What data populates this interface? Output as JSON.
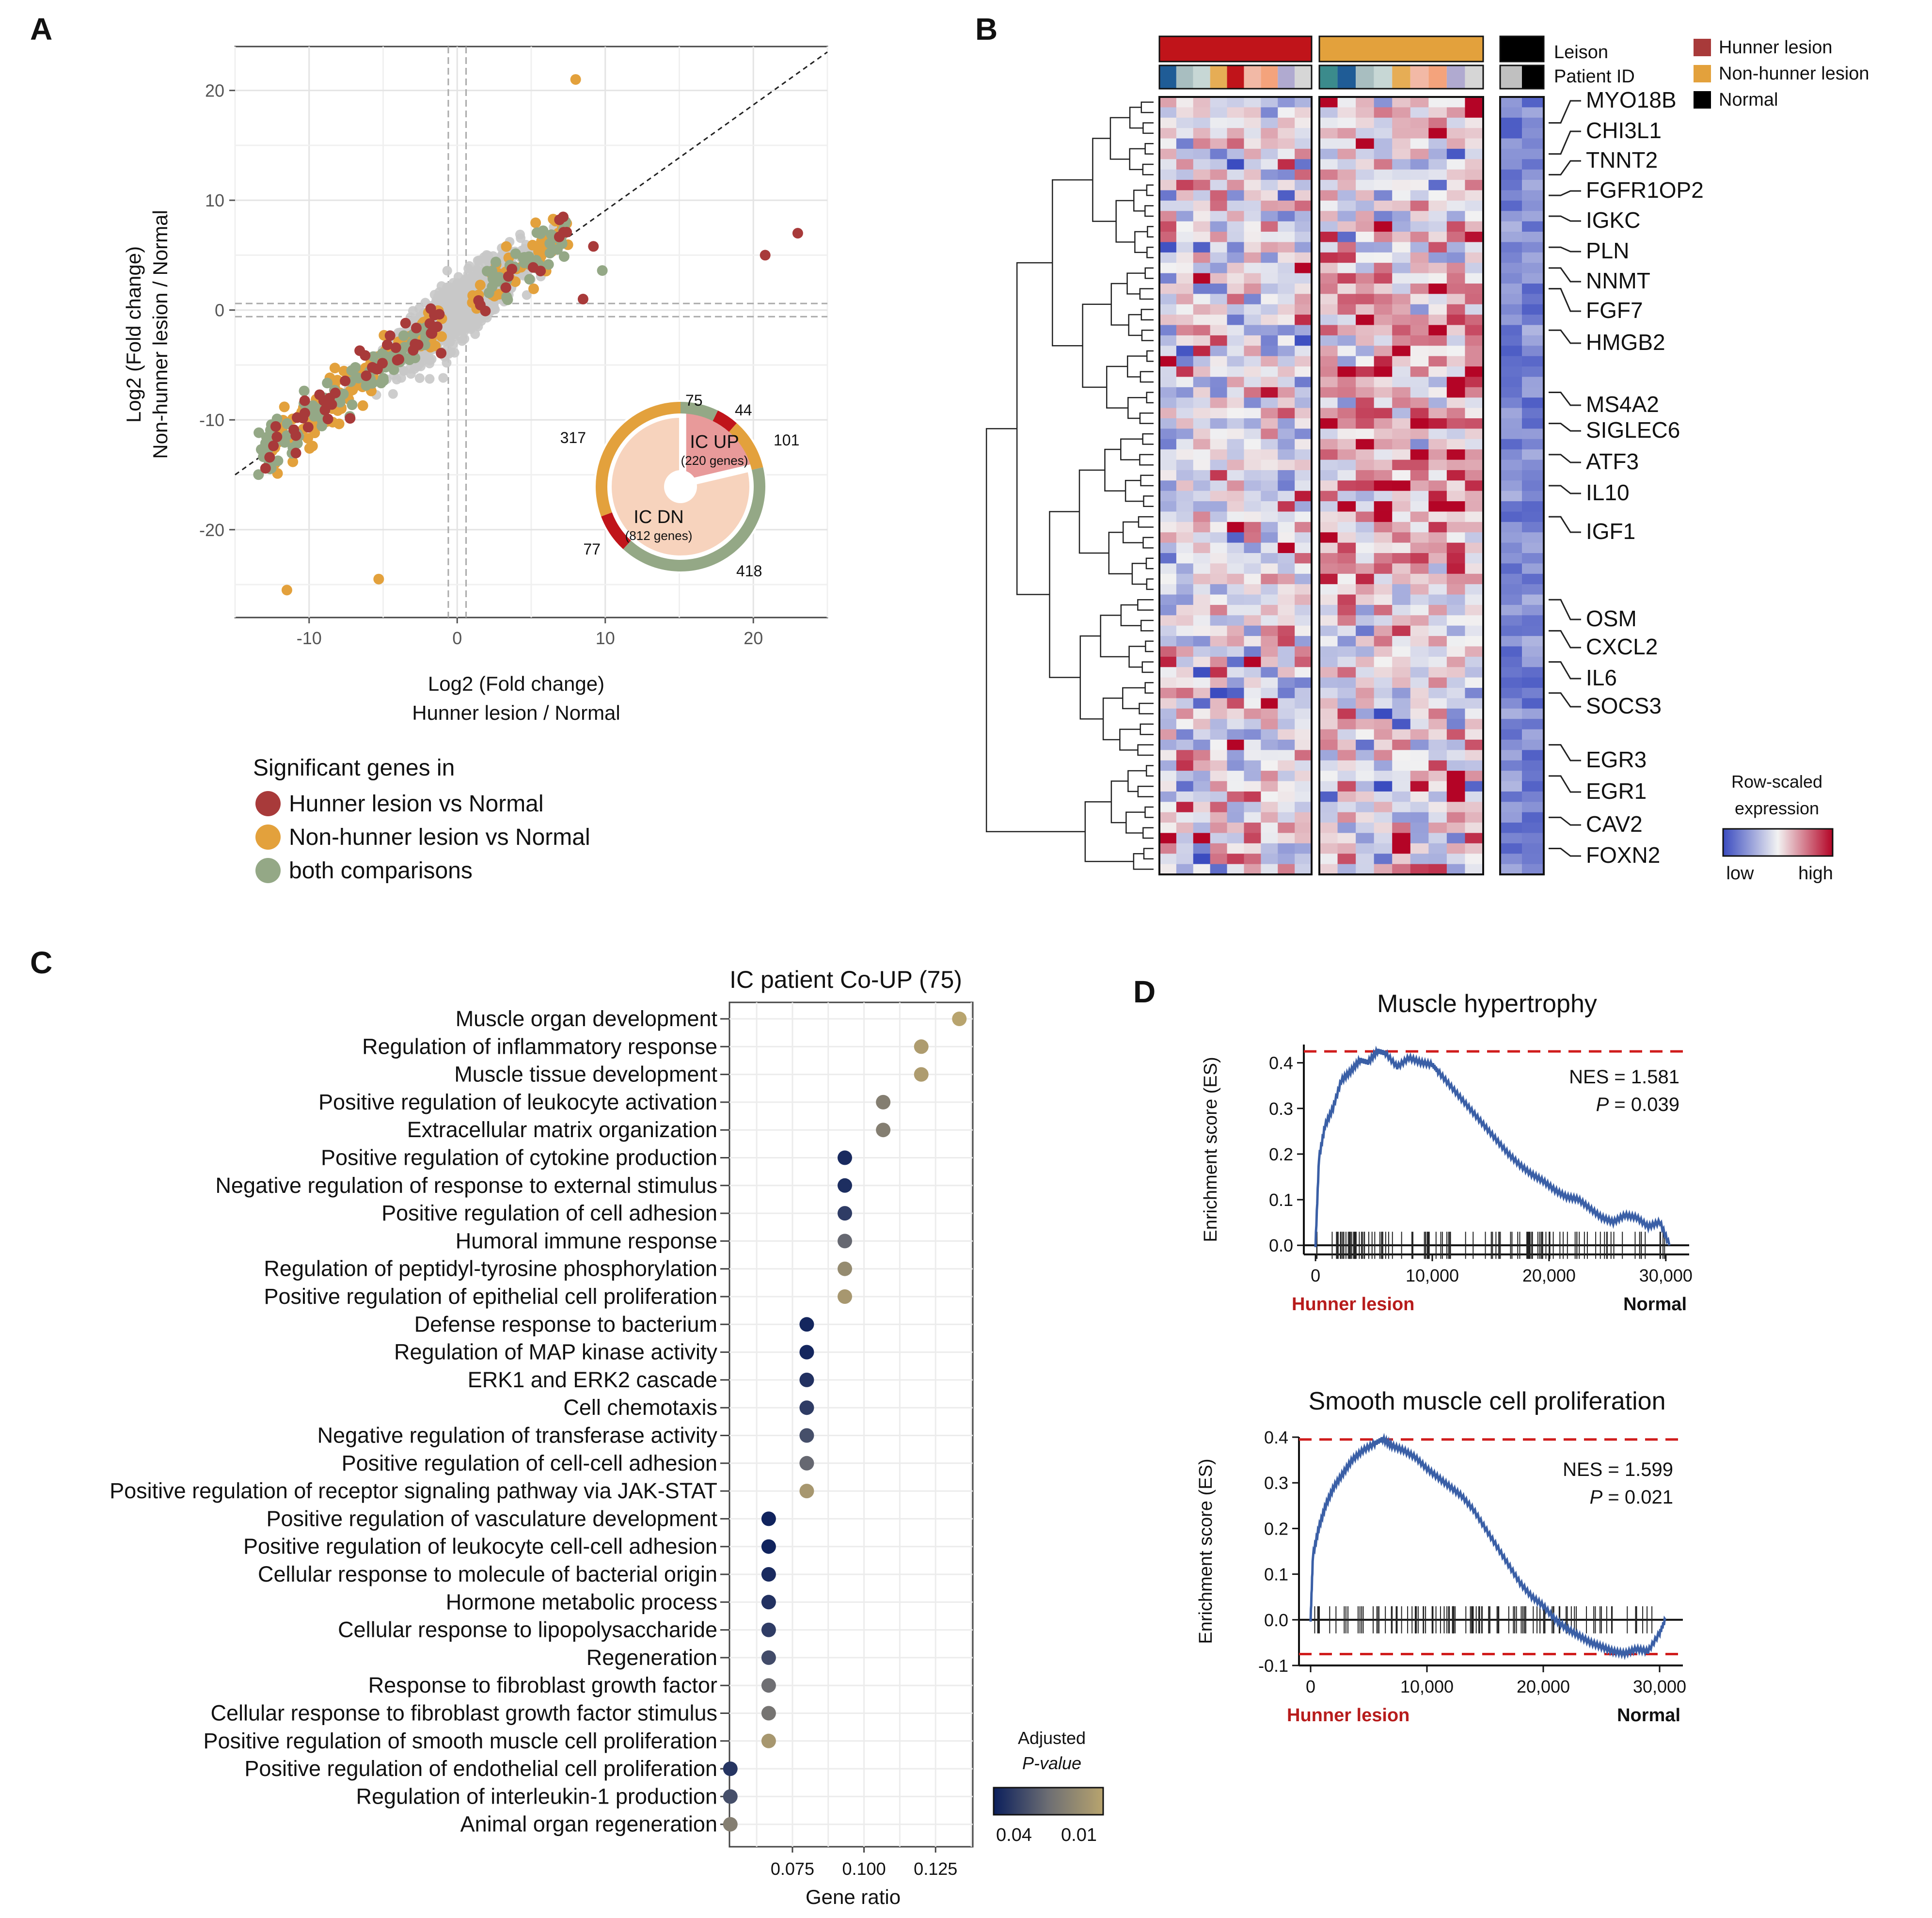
{
  "panels": {
    "a": "A",
    "b": "B",
    "c": "C",
    "d": "D"
  },
  "colors": {
    "hunner": "#a83a3a",
    "nonhunner": "#e3a13c",
    "both": "#94a886",
    "gray": "#c8c8c8",
    "ic_up": "#e89a9a",
    "ic_dn": "#f7d3bd",
    "ring_red": "#c0141a",
    "heat_low": "#3b4cc0",
    "heat_high": "#b40426",
    "gsea_line": "#3a5fa6",
    "gsea_dash": "#d01c1c",
    "padj_low": "#0b1f5c",
    "padj_high": "#b8a46e"
  },
  "chart_data": [
    {
      "id": "A",
      "type": "scatter",
      "xlabel": "Log2 (Fold change)",
      "xlabel2": "Hunner lesion / Normal",
      "ylabel": "Log2 (Fold change)",
      "ylabel2": "Non-hunner lesion / Normal",
      "xlim": [
        -15,
        25
      ],
      "ylim": [
        -28,
        24
      ],
      "xticks": [
        "-10",
        "0",
        "10",
        "20"
      ],
      "xtick_values": [
        -10,
        0,
        10,
        20
      ],
      "yticks": [
        "20",
        "10",
        "0",
        "-10",
        "-20"
      ],
      "ytick_values": [
        20,
        10,
        0,
        -10,
        -20
      ],
      "legend_title": "Significant genes in",
      "legend": [
        "Hunner lesion vs Normal",
        "Non-hunner lesion vs Normal",
        "both comparisons"
      ],
      "outliers": [
        {
          "x": 8,
          "y": 21,
          "group": "nonhunner"
        },
        {
          "x": 23,
          "y": 7,
          "group": "hunner"
        },
        {
          "x": 20.8,
          "y": 5,
          "group": "hunner"
        },
        {
          "x": 8.5,
          "y": 1,
          "group": "hunner"
        },
        {
          "x": 9.2,
          "y": 5.8,
          "group": "hunner"
        },
        {
          "x": 9.8,
          "y": 3.6,
          "group": "both"
        },
        {
          "x": -11.5,
          "y": -25.5,
          "group": "nonhunner"
        },
        {
          "x": -5.3,
          "y": -24.5,
          "group": "nonhunner"
        }
      ],
      "donut": {
        "up_label": "IC UP",
        "up_sub": "(220 genes)",
        "dn_label": "IC DN",
        "dn_sub": "(812 genes)",
        "up_segments": [
          {
            "label": "75",
            "value": 75,
            "group": "both"
          },
          {
            "label": "44",
            "value": 44,
            "group": "hunner"
          },
          {
            "label": "101",
            "value": 101,
            "group": "nonhunner"
          }
        ],
        "dn_segments": [
          {
            "label": "418",
            "value": 418,
            "group": "both"
          },
          {
            "label": "77",
            "value": 77,
            "group": "hunner"
          },
          {
            "label": "317",
            "value": 317,
            "group": "nonhunner"
          }
        ]
      }
    },
    {
      "id": "B",
      "type": "heatmap",
      "annotation_rows": [
        "Leison",
        "Patient ID"
      ],
      "legend": [
        "Hunner lesion",
        "Non-hunner lesion",
        "Normal"
      ],
      "scale_title_1": "Row-scaled",
      "scale_title_2": "expression",
      "scale_low": "low",
      "scale_high": "high",
      "groups": [
        {
          "name": "Hunner lesion",
          "n": 9
        },
        {
          "name": "Non-hunner lesion",
          "n": 9
        },
        {
          "name": "Normal",
          "n": 2
        }
      ],
      "genes": [
        "MYO18B",
        "CHI3L1",
        "TNNT2",
        "FGFR1OP2",
        "IGKC",
        "PLN",
        "NNMT",
        "FGF7",
        "HMGB2",
        "MS4A2",
        "SIGLEC6",
        "ATF3",
        "IL10",
        "IGF1",
        "OSM",
        "CXCL2",
        "IL6",
        "SOCS3",
        "EGR3",
        "EGR1",
        "CAV2",
        "FOXN2"
      ],
      "n_rows": 75
    },
    {
      "id": "C",
      "type": "scatter",
      "title": "IC patient Co-UP (75)",
      "xlabel": "Gene ratio",
      "xticks": [
        "0.075",
        "0.100",
        "0.125"
      ],
      "xtick_values": [
        0.075,
        0.1,
        0.125
      ],
      "xlim": [
        0.053,
        0.138
      ],
      "color_title_1": "Adjusted",
      "color_title_2": "P-value",
      "color_ticks": [
        "0.04",
        "0.01"
      ],
      "terms": [
        {
          "term": "Muscle organ development",
          "ratio": 0.1333,
          "padj": 0.005
        },
        {
          "term": "Regulation of inflammatory response",
          "ratio": 0.12,
          "padj": 0.008
        },
        {
          "term": "Muscle tissue development",
          "ratio": 0.12,
          "padj": 0.008
        },
        {
          "term": "Positive regulation of leukocyte activation",
          "ratio": 0.1067,
          "padj": 0.02
        },
        {
          "term": "Extracellular matrix organization",
          "ratio": 0.1067,
          "padj": 0.02
        },
        {
          "term": "Positive regulation of cytokine production",
          "ratio": 0.0933,
          "padj": 0.045
        },
        {
          "term": "Negative regulation of response to external stimulus",
          "ratio": 0.0933,
          "padj": 0.044
        },
        {
          "term": "Positive regulation of cell adhesion",
          "ratio": 0.0933,
          "padj": 0.04
        },
        {
          "term": "Humoral immune response",
          "ratio": 0.0933,
          "padj": 0.028
        },
        {
          "term": "Regulation of peptidyl-tyrosine phosphorylation",
          "ratio": 0.0933,
          "padj": 0.015
        },
        {
          "term": "Positive regulation of epithelial cell proliferation",
          "ratio": 0.0933,
          "padj": 0.01
        },
        {
          "term": "Defense response to bacterium",
          "ratio": 0.08,
          "padj": 0.046
        },
        {
          "term": "Regulation of MAP kinase activity",
          "ratio": 0.08,
          "padj": 0.046
        },
        {
          "term": "ERK1 and ERK2 cascade",
          "ratio": 0.08,
          "padj": 0.043
        },
        {
          "term": "Cell chemotaxis",
          "ratio": 0.08,
          "padj": 0.04
        },
        {
          "term": "Negative regulation of transferase activity",
          "ratio": 0.08,
          "padj": 0.035
        },
        {
          "term": "Positive regulation of cell-cell adhesion",
          "ratio": 0.08,
          "padj": 0.028
        },
        {
          "term": "Positive regulation of receptor signaling pathway via JAK-STAT",
          "ratio": 0.08,
          "padj": 0.01
        },
        {
          "term": "Positive regulation of vasculature development",
          "ratio": 0.0667,
          "padj": 0.047
        },
        {
          "term": "Positive regulation of leukocyte cell-cell adhesion",
          "ratio": 0.0667,
          "padj": 0.047
        },
        {
          "term": "Cellular response to molecule of bacterial origin",
          "ratio": 0.0667,
          "padj": 0.045
        },
        {
          "term": "Hormone metabolic process",
          "ratio": 0.0667,
          "padj": 0.043
        },
        {
          "term": "Cellular response to lipopolysaccharide",
          "ratio": 0.0667,
          "padj": 0.04
        },
        {
          "term": "Regeneration",
          "ratio": 0.0667,
          "padj": 0.036
        },
        {
          "term": "Response to fibroblast growth factor",
          "ratio": 0.0667,
          "padj": 0.026
        },
        {
          "term": "Cellular response to fibroblast growth factor stimulus",
          "ratio": 0.0667,
          "padj": 0.024
        },
        {
          "term": "Positive regulation of smooth muscle cell proliferation",
          "ratio": 0.0667,
          "padj": 0.01
        },
        {
          "term": "Positive regulation of endothelial cell proliferation",
          "ratio": 0.0533,
          "padj": 0.042
        },
        {
          "term": "Regulation of interleukin-1 production",
          "ratio": 0.0533,
          "padj": 0.035
        },
        {
          "term": "Animal organ regeneration",
          "ratio": 0.0533,
          "padj": 0.02
        }
      ]
    },
    {
      "id": "D1",
      "type": "line",
      "title": "Muscle hypertrophy",
      "ylabel": "Enrichment score (ES)",
      "nes": "NES = 1.581",
      "p_label": "P",
      "p_value": " = 0.039",
      "xticks": [
        "0",
        "10,000",
        "20,000",
        "30,000"
      ],
      "xtick_values": [
        0,
        10000,
        20000,
        30000
      ],
      "yticks": [
        "0.4",
        "0.3",
        "0.2",
        "0.1",
        "0.0"
      ],
      "ytick_values": [
        0.4,
        0.3,
        0.2,
        0.1,
        0.0
      ],
      "xlim": [
        -1000,
        32000
      ],
      "ylim": [
        -0.02,
        0.44
      ],
      "max_es": 0.425,
      "left_label": "Hunner lesion",
      "right_label": "Normal",
      "x": [
        0,
        300,
        800,
        1500,
        2200,
        3000,
        3800,
        4500,
        5300,
        6000,
        7000,
        8000,
        9000,
        10000,
        10500,
        11500,
        12500,
        13500,
        14500,
        15500,
        16500,
        17500,
        18500,
        19500,
        20500,
        21500,
        22500,
        23500,
        24500,
        25500,
        26500,
        27500,
        28500,
        29500,
        30300
      ],
      "y": [
        0,
        0.19,
        0.26,
        0.3,
        0.36,
        0.38,
        0.405,
        0.4,
        0.425,
        0.42,
        0.39,
        0.41,
        0.4,
        0.395,
        0.38,
        0.35,
        0.32,
        0.29,
        0.26,
        0.23,
        0.2,
        0.175,
        0.155,
        0.14,
        0.12,
        0.105,
        0.1,
        0.08,
        0.06,
        0.05,
        0.065,
        0.06,
        0.04,
        0.05,
        0.0
      ]
    },
    {
      "id": "D2",
      "type": "line",
      "title": "Smooth muscle cell proliferation",
      "ylabel": "Enrichment score (ES)",
      "nes": "NES = 1.599",
      "p_label": "P",
      "p_value": " = 0.021",
      "xticks": [
        "0",
        "10,000",
        "20,000",
        "30,000"
      ],
      "xtick_values": [
        0,
        10000,
        20000,
        30000
      ],
      "yticks": [
        "0.4",
        "0.3",
        "0.2",
        "0.1",
        "0.0",
        "-0.1"
      ],
      "ytick_values": [
        0.4,
        0.3,
        0.2,
        0.1,
        0.0,
        -0.1
      ],
      "xlim": [
        -1000,
        32000
      ],
      "ylim": [
        -0.1,
        0.4
      ],
      "max_es": 0.395,
      "min_es": -0.075,
      "left_label": "Hunner lesion",
      "right_label": "Normal",
      "x": [
        0,
        200,
        700,
        1300,
        2000,
        2800,
        3600,
        4500,
        5500,
        6200,
        7000,
        8000,
        9000,
        10000,
        11000,
        12000,
        13000,
        14000,
        15000,
        16000,
        17000,
        18000,
        19000,
        20000,
        21000,
        22000,
        23000,
        24000,
        25000,
        26000,
        27000,
        28000,
        29000,
        30000,
        30500
      ],
      "y": [
        0,
        0.14,
        0.2,
        0.25,
        0.29,
        0.32,
        0.35,
        0.37,
        0.385,
        0.395,
        0.38,
        0.37,
        0.355,
        0.33,
        0.31,
        0.29,
        0.27,
        0.24,
        0.2,
        0.16,
        0.12,
        0.08,
        0.05,
        0.03,
        0.0,
        -0.02,
        -0.035,
        -0.05,
        -0.06,
        -0.07,
        -0.075,
        -0.065,
        -0.07,
        -0.03,
        0.0
      ]
    }
  ]
}
